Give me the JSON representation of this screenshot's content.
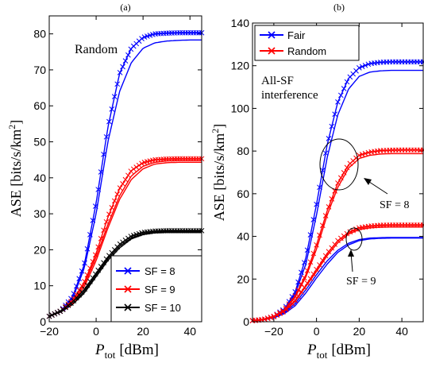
{
  "chart_data": [
    {
      "type": "line",
      "title": "(a)",
      "xlabel_main": "P",
      "xlabel_sub": "tot",
      "xlabel_unit": "[dBm]",
      "ylabel": "ASE  [bits/s/km",
      "ylabel_sup": "2",
      "ylabel_end": "]",
      "xlim": [
        -20,
        45
      ],
      "ylim": [
        0,
        85
      ],
      "xticks": [
        -20,
        0,
        20,
        40
      ],
      "yticks": [
        0,
        10,
        20,
        30,
        40,
        50,
        60,
        70,
        80
      ],
      "annotation": "Random",
      "legend_position": "bottom-right",
      "series": [
        {
          "name": "SF = 8",
          "color": "#0000ff",
          "marker": "x",
          "x": [
            -20,
            -15,
            -10,
            -5,
            0,
            5,
            10,
            15,
            20,
            25,
            30,
            35,
            40,
            45
          ],
          "values": [
            1.5,
            3,
            7,
            16,
            33,
            54,
            69,
            76,
            79,
            80,
            80.2,
            80.3,
            80.3,
            80.3
          ]
        },
        {
          "name": "SF = 9",
          "color": "#ff0000",
          "marker": "x",
          "x": [
            -20,
            -15,
            -10,
            -5,
            0,
            5,
            10,
            15,
            20,
            25,
            30,
            35,
            40,
            45
          ],
          "values": [
            1.5,
            3,
            6,
            11,
            19,
            29,
            37,
            42,
            44.2,
            45,
            45.2,
            45.3,
            45.3,
            45.3
          ]
        },
        {
          "name": "SF = 10",
          "color": "#000000",
          "marker": "x",
          "x": [
            -20,
            -15,
            -10,
            -5,
            0,
            5,
            10,
            15,
            20,
            25,
            30,
            35,
            40,
            45
          ],
          "values": [
            1.5,
            3,
            5.5,
            9,
            13.5,
            18,
            21.5,
            23.8,
            24.8,
            25.2,
            25.3,
            25.3,
            25.3,
            25.3
          ]
        }
      ],
      "plain_lines": [
        {
          "color": "#0000ff",
          "x": [
            -20,
            -15,
            -10,
            -5,
            0,
            5,
            10,
            15,
            20,
            25,
            30,
            35,
            40,
            45
          ],
          "values": [
            1.5,
            3,
            6.5,
            15,
            30,
            50,
            64,
            72,
            76,
            77.5,
            78,
            78.2,
            78.3,
            78.3
          ]
        },
        {
          "color": "#ff0000",
          "x": [
            -20,
            -15,
            -10,
            -5,
            0,
            5,
            10,
            15,
            20,
            25,
            30,
            35,
            40,
            45
          ],
          "values": [
            1.5,
            3,
            6,
            10.5,
            18,
            27,
            35,
            40.5,
            43.2,
            44.3,
            44.7,
            44.8,
            44.8,
            44.8
          ]
        },
        {
          "color": "#ff0000",
          "x": [
            -20,
            -15,
            -10,
            -5,
            0,
            5,
            10,
            15,
            20,
            25,
            30,
            35,
            40,
            45
          ],
          "values": [
            1.5,
            2.8,
            5.5,
            9.8,
            17,
            26,
            34,
            39.5,
            42.5,
            43.8,
            44.2,
            44.3,
            44.3,
            44.3
          ]
        },
        {
          "color": "#000000",
          "x": [
            -20,
            -15,
            -10,
            -5,
            0,
            5,
            10,
            15,
            20,
            25,
            30,
            35,
            40,
            45
          ],
          "values": [
            1.5,
            2.8,
            5,
            8.5,
            13,
            17.5,
            21,
            23.3,
            24.4,
            24.9,
            25,
            25,
            25,
            25
          ]
        },
        {
          "color": "#000000",
          "x": [
            -20,
            -15,
            -10,
            -5,
            0,
            5,
            10,
            15,
            20,
            25,
            30,
            35,
            40,
            45
          ],
          "values": [
            1.5,
            2.7,
            4.8,
            8,
            12.5,
            17,
            20.5,
            23,
            24.2,
            24.7,
            24.8,
            24.8,
            24.8,
            24.8
          ]
        }
      ]
    },
    {
      "type": "line",
      "title": "(b)",
      "xlabel_main": "P",
      "xlabel_sub": "tot",
      "xlabel_unit": "[dBm]",
      "ylabel": "ASE  [bits/s/km",
      "ylabel_sup": "2",
      "ylabel_end": "]",
      "xlim": [
        -30,
        50
      ],
      "ylim": [
        0,
        140
      ],
      "xticks": [
        -20,
        0,
        20,
        40
      ],
      "yticks": [
        0,
        20,
        40,
        60,
        80,
        100,
        120,
        140
      ],
      "annotation_lines": [
        "All-SF",
        "interference"
      ],
      "sf8_label": "SF = 8",
      "sf9_label": "SF = 9",
      "legend_position": "top-left",
      "legend": [
        {
          "name": "Fair",
          "color": "#0000ff"
        },
        {
          "name": "Random",
          "color": "#ff0000"
        }
      ],
      "series": [
        {
          "name": "Fair",
          "color": "#0000ff",
          "marker": "x",
          "x": [
            -30,
            -25,
            -20,
            -15,
            -10,
            -5,
            0,
            5,
            10,
            15,
            20,
            25,
            30,
            35,
            40,
            45,
            50
          ],
          "values": [
            0.5,
            1,
            2.5,
            6,
            14,
            30,
            55,
            83,
            103,
            114,
            119,
            121,
            121.6,
            121.8,
            121.8,
            121.8,
            121.8
          ]
        },
        {
          "name": "Random",
          "color": "#ff0000",
          "marker": "x",
          "x": [
            -30,
            -25,
            -20,
            -15,
            -10,
            -5,
            0,
            5,
            10,
            15,
            20,
            25,
            30,
            35,
            40,
            45,
            50
          ],
          "values": [
            0.5,
            1,
            2.5,
            5.5,
            12,
            22,
            36,
            52,
            65,
            73.5,
            78,
            79.5,
            80.2,
            80.4,
            80.5,
            80.5,
            80.5
          ]
        },
        {
          "name": "Random",
          "color": "#ff0000",
          "marker": "x",
          "x": [
            -30,
            -25,
            -20,
            -15,
            -10,
            -5,
            0,
            5,
            10,
            15,
            20,
            25,
            30,
            35,
            40,
            45,
            50
          ],
          "values": [
            0.5,
            1,
            2.3,
            5,
            10,
            17,
            24.5,
            32,
            38,
            41.8,
            44,
            44.8,
            45.2,
            45.3,
            45.3,
            45.3,
            45.3
          ]
        }
      ],
      "plain_lines": [
        {
          "color": "#0000ff",
          "x": [
            -30,
            -25,
            -20,
            -15,
            -10,
            -5,
            0,
            5,
            10,
            15,
            20,
            25,
            30,
            35,
            40,
            45,
            50
          ],
          "values": [
            0.5,
            1,
            2.4,
            5.5,
            13,
            27,
            50,
            77,
            97,
            109,
            115,
            117,
            117.6,
            117.8,
            117.8,
            117.8,
            117.8
          ]
        },
        {
          "color": "#ff0000",
          "x": [
            -30,
            -25,
            -20,
            -15,
            -10,
            -5,
            0,
            5,
            10,
            15,
            20,
            25,
            30,
            35,
            40,
            45,
            50
          ],
          "values": [
            0.5,
            1,
            2.4,
            5.3,
            11.5,
            21,
            34,
            50,
            63,
            72,
            76.5,
            78,
            78.6,
            78.8,
            78.8,
            78.8,
            78.8
          ]
        },
        {
          "color": "#ff0000",
          "x": [
            -30,
            -25,
            -20,
            -15,
            -10,
            -5,
            0,
            5,
            10,
            15,
            20,
            25,
            30,
            35,
            40,
            45,
            50
          ],
          "values": [
            0.5,
            1,
            2.2,
            4.8,
            9.5,
            16.5,
            23.5,
            31,
            37,
            41,
            43.2,
            44,
            44.3,
            44.4,
            44.4,
            44.4,
            44.4
          ]
        },
        {
          "color": "#0000ff",
          "x": [
            -30,
            -25,
            -20,
            -15,
            -10,
            -5,
            0,
            5,
            10,
            15,
            20,
            25,
            30,
            35,
            40,
            45,
            50
          ],
          "values": [
            0.5,
            1,
            2,
            4.3,
            8.5,
            15,
            22,
            28.5,
            33.5,
            36.8,
            38.5,
            39.2,
            39.4,
            39.5,
            39.5,
            39.5,
            39.5
          ]
        },
        {
          "color": "#0000ff",
          "x": [
            -30,
            -25,
            -20,
            -15,
            -10,
            -5,
            0,
            5,
            10,
            15,
            20,
            25,
            30,
            35,
            40,
            45,
            50
          ],
          "values": [
            0.5,
            1,
            1.8,
            3.8,
            7.5,
            13.5,
            20.5,
            27,
            32.5,
            36,
            38,
            38.8,
            39.1,
            39.2,
            39.2,
            39.2,
            39.2
          ]
        }
      ]
    }
  ]
}
